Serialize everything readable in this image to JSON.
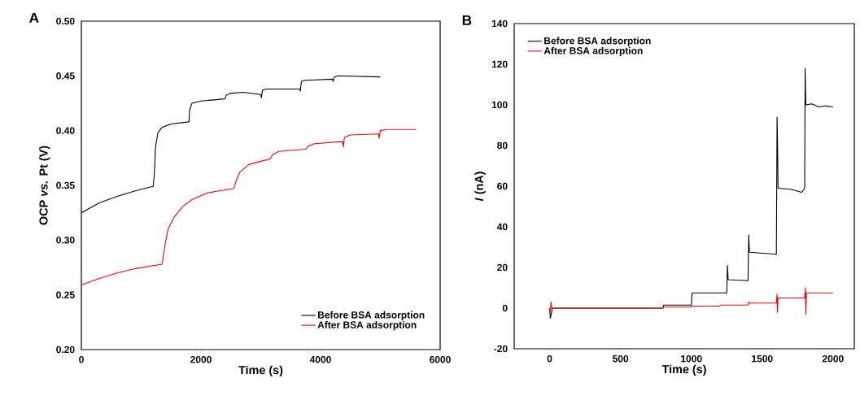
{
  "chart_data": [
    {
      "type": "line",
      "title": "A",
      "xlabel": "Time (s)",
      "ylabel": "OCP *vs.* Pt (V)",
      "xlim": [
        0,
        6000
      ],
      "ylim": [
        0.2,
        0.5
      ],
      "xticks": [
        0,
        2000,
        4000,
        6000
      ],
      "yticks": [
        {
          "value": 0.2,
          "label": "0.20"
        },
        {
          "value": 0.25,
          "label": "0.25"
        },
        {
          "value": 0.3,
          "label": "0.30"
        },
        {
          "value": 0.35,
          "label": "0.35"
        },
        {
          "value": 0.4,
          "label": "0.40"
        },
        {
          "value": 0.45,
          "label": "0.45"
        },
        {
          "value": 0.5,
          "label": "0.50"
        }
      ],
      "legend": "bottom right",
      "grid": false,
      "series": [
        {
          "name": "Before BSA adsorption",
          "color": "#000000",
          "x": [
            0,
            300,
            600,
            900,
            1200,
            1220,
            1240,
            1280,
            1350,
            1500,
            1800,
            1810,
            1850,
            2000,
            2400,
            2420,
            2480,
            2700,
            3000,
            3010,
            3030,
            3100,
            3650,
            3660,
            3680,
            3750,
            4200,
            4210,
            4230,
            4300,
            5000
          ],
          "values": [
            0.325,
            0.334,
            0.34,
            0.345,
            0.349,
            0.36,
            0.385,
            0.398,
            0.403,
            0.406,
            0.408,
            0.419,
            0.425,
            0.427,
            0.429,
            0.432,
            0.434,
            0.435,
            0.433,
            0.43,
            0.437,
            0.438,
            0.438,
            0.436,
            0.445,
            0.446,
            0.447,
            0.445,
            0.449,
            0.45,
            0.449
          ]
        },
        {
          "name": "After BSA adsorption",
          "color": "#ff0000",
          "x": [
            0,
            300,
            600,
            900,
            1350,
            1400,
            1450,
            1550,
            1700,
            1850,
            2100,
            2300,
            2550,
            2580,
            2650,
            2800,
            3000,
            3150,
            3200,
            3300,
            3750,
            3800,
            3900,
            4370,
            4380,
            4400,
            4500,
            4970,
            4980,
            5000,
            5100,
            5600
          ],
          "values": [
            0.259,
            0.265,
            0.27,
            0.274,
            0.278,
            0.296,
            0.31,
            0.321,
            0.331,
            0.337,
            0.343,
            0.345,
            0.347,
            0.353,
            0.362,
            0.369,
            0.372,
            0.374,
            0.378,
            0.381,
            0.383,
            0.386,
            0.388,
            0.39,
            0.385,
            0.394,
            0.396,
            0.397,
            0.393,
            0.4,
            0.401,
            0.401
          ]
        }
      ]
    },
    {
      "type": "line",
      "title": "B",
      "xlabel": "Time (s)",
      "ylabel": "*I* (nA)",
      "xlim": [
        -250,
        2150
      ],
      "ylim": [
        -20,
        140
      ],
      "xticks": [
        0,
        500,
        1000,
        1500,
        2000
      ],
      "yticks": [
        -20,
        0,
        20,
        40,
        60,
        80,
        100,
        120,
        140
      ],
      "legend": "top left",
      "grid": false,
      "series": [
        {
          "name": "Before BSA adsorption",
          "color": "#000000",
          "x": [
            0,
            5,
            10,
            20,
            800,
            805,
            1000,
            1005,
            1250,
            1255,
            1260,
            1400,
            1405,
            1410,
            1600,
            1605,
            1608,
            1612,
            1700,
            1780,
            1800,
            1803,
            1808,
            1850,
            1900,
            1950,
            2000
          ],
          "values": [
            0,
            -5,
            null,
            0,
            0,
            1.5,
            1.5,
            7.5,
            7.5,
            21,
            14,
            13.5,
            36,
            27.5,
            26.5,
            94,
            83,
            59,
            58.5,
            57,
            59,
            118,
            100,
            100.5,
            99,
            99.5,
            99
          ]
        },
        {
          "name": "After BSA adsorption",
          "color": "#ff0000",
          "x": [
            0,
            5,
            10,
            15,
            800,
            805,
            1000,
            1005,
            1200,
            1205,
            1400,
            1405,
            1410,
            1600,
            1605,
            1608,
            1612,
            1800,
            1805,
            1808,
            1812,
            2000
          ],
          "values": [
            0,
            -2,
            3,
            0,
            0,
            0.5,
            0.5,
            1,
            1,
            1.5,
            1.5,
            3,
            2.5,
            2.5,
            7,
            -2,
            5,
            5,
            10,
            -3,
            7.5,
            7.5
          ]
        }
      ]
    }
  ]
}
